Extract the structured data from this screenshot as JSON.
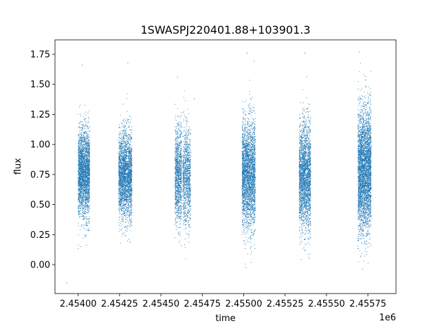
{
  "chart_data": {
    "type": "scatter",
    "title": "1SWASPJ220401.88+103901.3",
    "xlabel": "time",
    "ylabel": "flux",
    "x_offset_label": "1e6",
    "xlim": [
      2453860,
      2455920
    ],
    "ylim": [
      -0.24,
      1.87
    ],
    "x_ticks": [
      2454000,
      2454250,
      2454500,
      2454750,
      2455000,
      2455250,
      2455500,
      2455750
    ],
    "x_tick_labels": [
      "2.45400",
      "2.45425",
      "2.45450",
      "2.45475",
      "2.45500",
      "2.45525",
      "2.45550",
      "2.45575"
    ],
    "y_ticks": [
      0.0,
      0.25,
      0.5,
      0.75,
      1.0,
      1.25,
      1.5,
      1.75
    ],
    "y_tick_labels": [
      "0.00",
      "0.25",
      "0.50",
      "0.75",
      "1.00",
      "1.25",
      "1.50",
      "1.75"
    ],
    "grid": false,
    "series": [
      {
        "color": "#1f77b4",
        "clusters": [
          {
            "x_start": 2454000,
            "x_end": 2454070,
            "y_center": 0.76,
            "y_spread": 0.18,
            "count": 2600
          },
          {
            "x_start": 2454245,
            "x_end": 2454325,
            "y_center": 0.74,
            "y_spread": 0.18,
            "count": 2600
          },
          {
            "x_start": 2454585,
            "x_end": 2454625,
            "y_center": 0.74,
            "y_spread": 0.2,
            "count": 1100
          },
          {
            "x_start": 2454632,
            "x_end": 2454680,
            "y_center": 0.73,
            "y_spread": 0.2,
            "count": 1000
          },
          {
            "x_start": 2454990,
            "x_end": 2455070,
            "y_center": 0.75,
            "y_spread": 0.22,
            "count": 2800
          },
          {
            "x_start": 2455335,
            "x_end": 2455405,
            "y_center": 0.73,
            "y_spread": 0.22,
            "count": 2400
          },
          {
            "x_start": 2455690,
            "x_end": 2455770,
            "y_center": 0.78,
            "y_spread": 0.25,
            "count": 3600
          }
        ],
        "outliers": [
          {
            "x": 2453930,
            "y": -0.15
          },
          {
            "x": 2454025,
            "y": 1.66
          },
          {
            "x": 2454300,
            "y": 1.68
          },
          {
            "x": 2454600,
            "y": 1.56
          },
          {
            "x": 2454700,
            "y": 1.38
          },
          {
            "x": 2455020,
            "y": 1.76
          },
          {
            "x": 2455370,
            "y": 1.76
          },
          {
            "x": 2455700,
            "y": 1.77
          }
        ]
      }
    ]
  }
}
